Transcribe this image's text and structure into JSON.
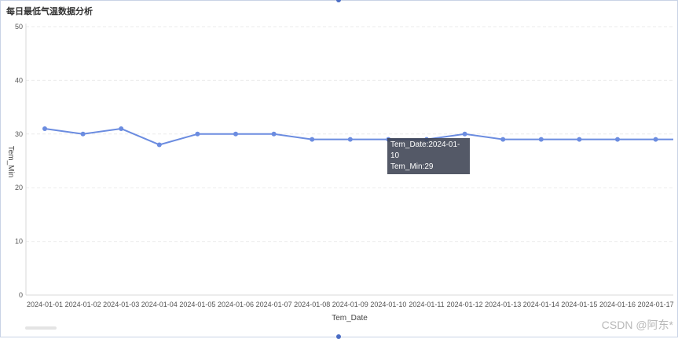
{
  "title": "每日最低气温数据分析",
  "watermark": "CSDN @阿东*",
  "colors": {
    "line": "#6b8ce0",
    "grid": "#ebebeb",
    "axis": "#d9d9d9"
  },
  "tooltip": {
    "line1": "Tem_Date:2024-01-10",
    "line2": "Tem_Min:29"
  },
  "chart_data": {
    "type": "line",
    "title": "每日最低气温数据分析",
    "xlabel": "Tem_Date",
    "ylabel": "Tem_Min",
    "ylim": [
      0,
      50
    ],
    "yticks": [
      0,
      10,
      20,
      30,
      40,
      50
    ],
    "grid": true,
    "categories": [
      "2024-01-01",
      "2024-01-02",
      "2024-01-03",
      "2024-01-04",
      "2024-01-05",
      "2024-01-06",
      "2024-01-07",
      "2024-01-08",
      "2024-01-09",
      "2024-01-10",
      "2024-01-11",
      "2024-01-12",
      "2024-01-13",
      "2024-01-14",
      "2024-01-15",
      "2024-01-16",
      "2024-01-17"
    ],
    "series": [
      {
        "values": [
          31,
          30,
          31,
          28,
          30,
          30,
          30,
          29,
          29,
          29,
          29,
          30,
          29,
          29,
          29,
          29,
          29
        ]
      }
    ]
  }
}
